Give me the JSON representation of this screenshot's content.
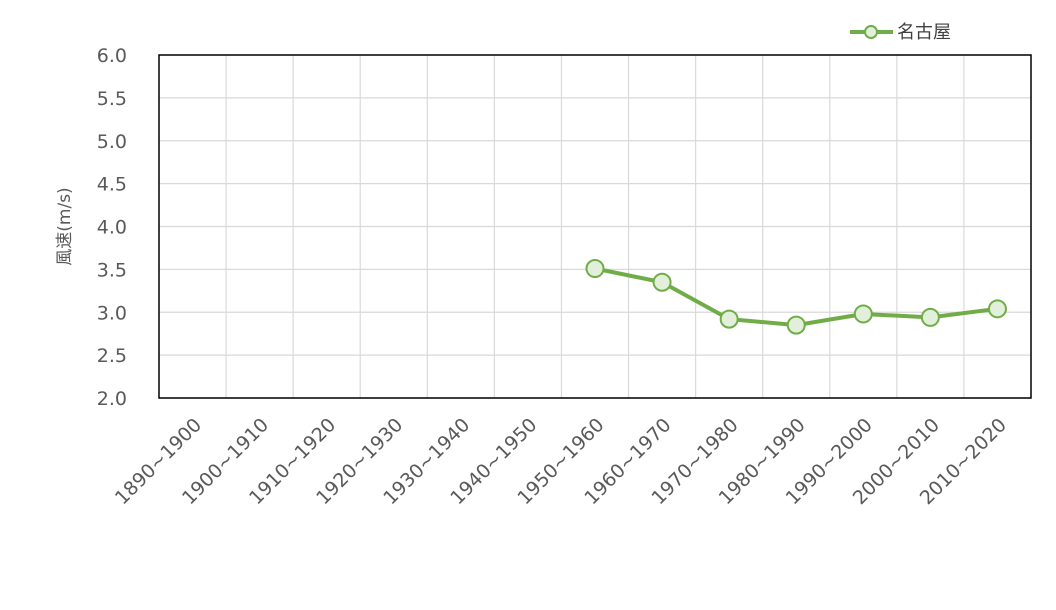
{
  "chart_data": {
    "type": "line",
    "categories": [
      "1890~1900",
      "1900~1910",
      "1910~1920",
      "1920~1930",
      "1930~1940",
      "1940~1950",
      "1950~1960",
      "1960~1970",
      "1970~1980",
      "1980~1990",
      "1990~2000",
      "2000~2010",
      "2010~2020"
    ],
    "series": [
      {
        "name": "名古屋",
        "values": [
          null,
          null,
          null,
          null,
          null,
          null,
          3.51,
          3.35,
          2.92,
          2.85,
          2.98,
          2.94,
          3.04
        ]
      }
    ],
    "title": "",
    "xlabel": "",
    "ylabel": "風速(m/s)",
    "ylim": [
      2.0,
      6.0
    ],
    "yticks": [
      "2.0",
      "2.5",
      "3.0",
      "3.5",
      "4.0",
      "4.5",
      "5.0",
      "5.5",
      "6.0"
    ],
    "grid": true,
    "legend_position": "top-right",
    "colors": {
      "series": "#70ad47",
      "marker_fill": "#e2efda",
      "grid": "#d9d9d9",
      "frame": "#000000"
    }
  }
}
